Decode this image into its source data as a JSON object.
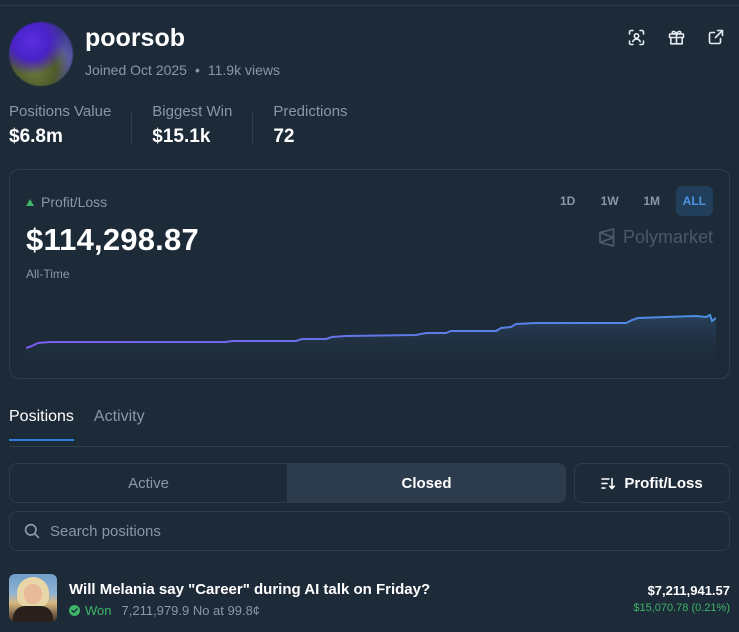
{
  "profile": {
    "username": "poorsob",
    "joined": "Joined Oct 2025",
    "views": "11.9k views"
  },
  "header_icons": [
    "scan-icon",
    "gift-icon",
    "external-link-icon"
  ],
  "stats": [
    {
      "label": "Positions Value",
      "value": "$6.8m"
    },
    {
      "label": "Biggest Win",
      "value": "$15.1k"
    },
    {
      "label": "Predictions",
      "value": "72"
    }
  ],
  "pnl": {
    "label": "Profit/Loss",
    "value": "$114,298.87",
    "period_label": "All-Time",
    "brand": "Polymarket",
    "ranges": [
      "1D",
      "1W",
      "1M",
      "ALL"
    ],
    "active_range": "ALL",
    "colors": {
      "line_start": "#7b5cf0",
      "line_end": "#4a90e2",
      "up": "#3db468"
    }
  },
  "tabs": [
    "Positions",
    "Activity"
  ],
  "active_tab": "Positions",
  "filters": {
    "segments": [
      "Active",
      "Closed"
    ],
    "active_segment": "Closed",
    "sort_label": "Profit/Loss"
  },
  "search": {
    "placeholder": "Search positions",
    "value": ""
  },
  "positions": [
    {
      "title": "Will Melania say \"Career\" during AI talk on Friday?",
      "status": "Won",
      "shares": "7,211,979.9 No at 99.8¢",
      "value": "$7,211,941.57",
      "pnl": "$15,070.78 (0.21%)"
    }
  ]
}
